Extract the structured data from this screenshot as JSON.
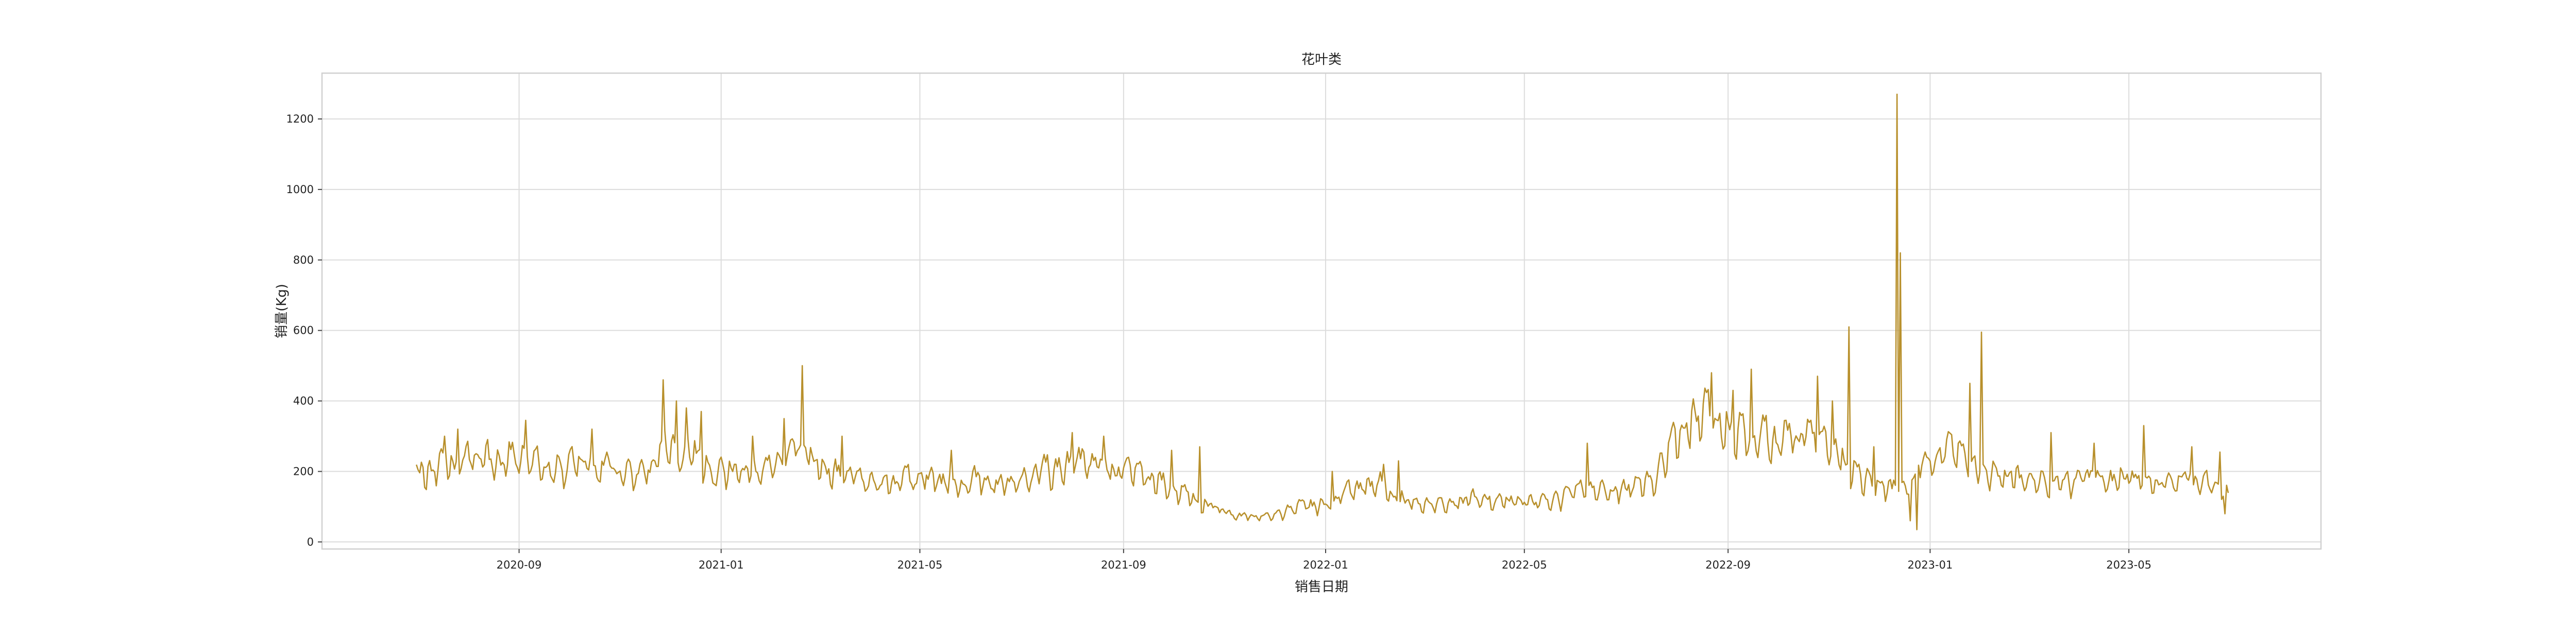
{
  "chart_data": {
    "type": "line",
    "title": "花叶类",
    "xlabel": "销售日期",
    "ylabel": "销量(Kg)",
    "x_ticks": [
      "2020-09",
      "2021-01",
      "2021-05",
      "2021-09",
      "2022-01",
      "2022-05",
      "2022-09",
      "2023-01",
      "2023-05"
    ],
    "y_ticks": [
      0,
      200,
      400,
      600,
      800,
      1000,
      1200
    ],
    "xlim": [
      "2020-05-05",
      "2023-08-25"
    ],
    "ylim": [
      -20,
      1330
    ],
    "grid": true,
    "color": "#b8902c",
    "x_start": "2020-07-01",
    "x_end": "2023-06-30",
    "anchors": [
      [
        "2020-07-01",
        200
      ],
      [
        "2020-07-15",
        215
      ],
      [
        "2020-08-01",
        235
      ],
      [
        "2020-08-15",
        225
      ],
      [
        "2020-09-01",
        245
      ],
      [
        "2020-09-15",
        210
      ],
      [
        "2020-10-01",
        220
      ],
      [
        "2020-10-15",
        205
      ],
      [
        "2020-11-01",
        210
      ],
      [
        "2020-11-15",
        195
      ],
      [
        "2020-12-01",
        260
      ],
      [
        "2020-12-15",
        240
      ],
      [
        "2021-01-01",
        200
      ],
      [
        "2021-01-15",
        210
      ],
      [
        "2021-02-01",
        215
      ],
      [
        "2021-02-15",
        260
      ],
      [
        "2021-03-01",
        210
      ],
      [
        "2021-03-15",
        190
      ],
      [
        "2021-04-01",
        165
      ],
      [
        "2021-04-15",
        170
      ],
      [
        "2021-05-01",
        175
      ],
      [
        "2021-05-15",
        175
      ],
      [
        "2021-06-01",
        170
      ],
      [
        "2021-06-15",
        165
      ],
      [
        "2021-07-01",
        175
      ],
      [
        "2021-07-15",
        205
      ],
      [
        "2021-08-01",
        225
      ],
      [
        "2021-08-15",
        230
      ],
      [
        "2021-09-01",
        205
      ],
      [
        "2021-09-15",
        185
      ],
      [
        "2021-10-01",
        160
      ],
      [
        "2021-10-15",
        120
      ],
      [
        "2021-11-01",
        85
      ],
      [
        "2021-11-15",
        70
      ],
      [
        "2021-12-01",
        80
      ],
      [
        "2021-12-15",
        95
      ],
      [
        "2022-01-01",
        110
      ],
      [
        "2022-01-15",
        145
      ],
      [
        "2022-02-01",
        165
      ],
      [
        "2022-02-15",
        120
      ],
      [
        "2022-03-01",
        100
      ],
      [
        "2022-03-15",
        105
      ],
      [
        "2022-04-01",
        125
      ],
      [
        "2022-04-15",
        120
      ],
      [
        "2022-05-01",
        110
      ],
      [
        "2022-05-15",
        115
      ],
      [
        "2022-06-01",
        140
      ],
      [
        "2022-06-15",
        150
      ],
      [
        "2022-07-01",
        155
      ],
      [
        "2022-07-15",
        165
      ],
      [
        "2022-08-01",
        305
      ],
      [
        "2022-08-15",
        355
      ],
      [
        "2022-09-01",
        320
      ],
      [
        "2022-09-15",
        290
      ],
      [
        "2022-10-01",
        295
      ],
      [
        "2022-10-15",
        285
      ],
      [
        "2022-11-01",
        270
      ],
      [
        "2022-11-15",
        200
      ],
      [
        "2022-12-01",
        160
      ],
      [
        "2022-12-15",
        150
      ],
      [
        "2023-01-01",
        235
      ],
      [
        "2023-01-15",
        260
      ],
      [
        "2023-02-01",
        205
      ],
      [
        "2023-02-15",
        190
      ],
      [
        "2023-03-01",
        175
      ],
      [
        "2023-03-15",
        170
      ],
      [
        "2023-04-01",
        180
      ],
      [
        "2023-04-15",
        175
      ],
      [
        "2023-05-01",
        185
      ],
      [
        "2023-05-15",
        170
      ],
      [
        "2023-06-01",
        180
      ],
      [
        "2023-06-15",
        165
      ],
      [
        "2023-06-30",
        130
      ]
    ],
    "spikes": [
      [
        "2020-07-18",
        300
      ],
      [
        "2020-07-26",
        320
      ],
      [
        "2020-09-05",
        345
      ],
      [
        "2020-10-15",
        320
      ],
      [
        "2020-11-27",
        460
      ],
      [
        "2020-12-05",
        400
      ],
      [
        "2020-12-11",
        380
      ],
      [
        "2020-12-20",
        370
      ],
      [
        "2021-01-20",
        300
      ],
      [
        "2021-02-08",
        350
      ],
      [
        "2021-02-19",
        500
      ],
      [
        "2021-03-15",
        300
      ],
      [
        "2021-05-20",
        260
      ],
      [
        "2021-08-01",
        310
      ],
      [
        "2021-08-20",
        300
      ],
      [
        "2021-09-30",
        260
      ],
      [
        "2021-10-17",
        270
      ],
      [
        "2022-01-05",
        200
      ],
      [
        "2022-02-05",
        220
      ],
      [
        "2022-02-14",
        230
      ],
      [
        "2022-06-08",
        280
      ],
      [
        "2022-08-22",
        480
      ],
      [
        "2022-09-04",
        430
      ],
      [
        "2022-09-15",
        490
      ],
      [
        "2022-10-25",
        470
      ],
      [
        "2022-11-03",
        400
      ],
      [
        "2022-11-13",
        610
      ],
      [
        "2022-11-28",
        270
      ],
      [
        "2022-12-12",
        1270
      ],
      [
        "2022-12-14",
        820
      ],
      [
        "2022-12-20",
        60
      ],
      [
        "2022-12-24",
        35
      ],
      [
        "2023-01-25",
        450
      ],
      [
        "2023-02-01",
        595
      ],
      [
        "2023-03-15",
        310
      ],
      [
        "2023-04-10",
        280
      ],
      [
        "2023-05-10",
        330
      ],
      [
        "2023-06-08",
        270
      ],
      [
        "2023-06-25",
        255
      ],
      [
        "2023-06-28",
        80
      ]
    ]
  }
}
